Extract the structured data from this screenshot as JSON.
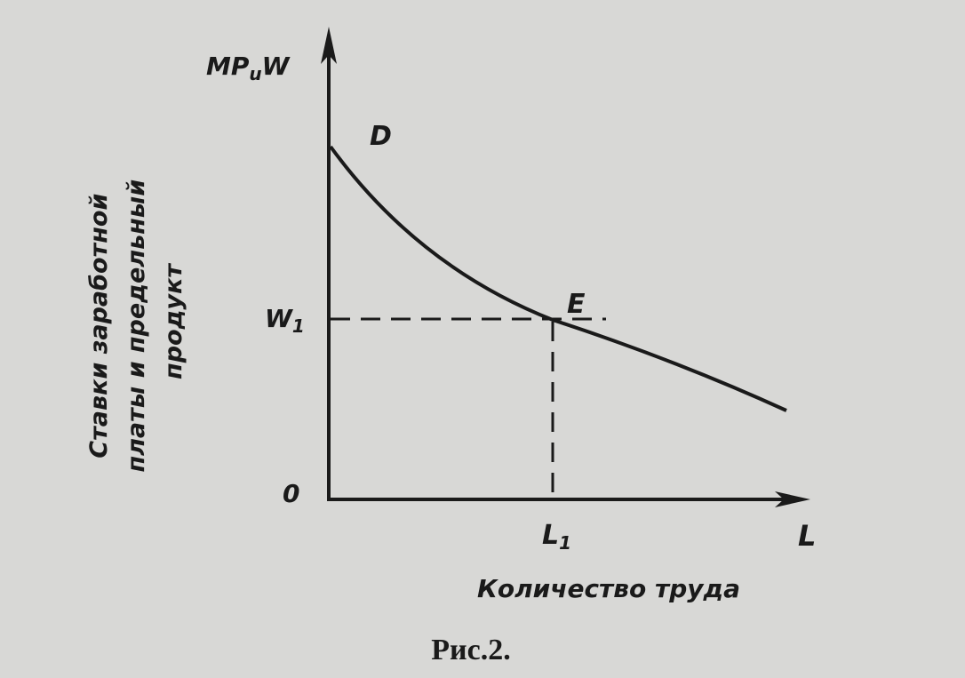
{
  "axis_labels": {
    "y": {
      "main": "MP",
      "sub": "u",
      "tail": "W"
    },
    "x": "L"
  },
  "points": {
    "D": "D",
    "E": "E"
  },
  "levels": {
    "w": {
      "main": "W",
      "sub": "1"
    },
    "l": {
      "main": "L",
      "sub": "1"
    },
    "origin": "0"
  },
  "y_axis_title": [
    "Ставки заработной",
    "платы и предельный",
    "продукт"
  ],
  "x_axis_title": "Количество труда",
  "caption": "Рис.2."
}
